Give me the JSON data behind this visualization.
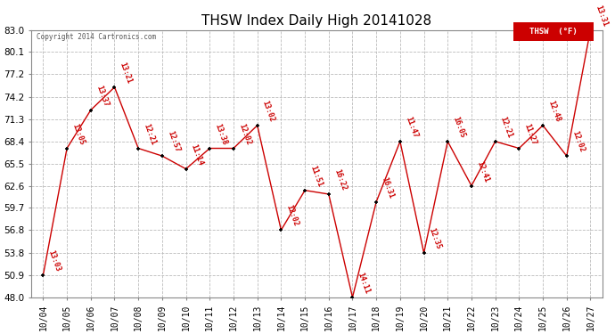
{
  "title": "THSW Index Daily High 20141028",
  "copyright": "Copyright 2014 Cartronics.com",
  "legend_label": "THSW  (°F)",
  "dates": [
    "10/04",
    "10/05",
    "10/06",
    "10/07",
    "10/08",
    "10/09",
    "10/10",
    "10/11",
    "10/12",
    "10/13",
    "10/14",
    "10/15",
    "10/16",
    "10/17",
    "10/18",
    "10/19",
    "10/20",
    "10/21",
    "10/22",
    "10/23",
    "10/24",
    "10/25",
    "10/26",
    "10/27"
  ],
  "values": [
    50.9,
    67.5,
    72.5,
    75.5,
    67.5,
    66.5,
    64.8,
    67.5,
    67.5,
    70.5,
    56.8,
    62.0,
    61.5,
    48.0,
    60.5,
    68.4,
    53.8,
    68.4,
    62.6,
    68.4,
    67.5,
    70.5,
    66.5,
    83.0
  ],
  "labels": [
    "13:03",
    "13:05",
    "13:37",
    "13:21",
    "12:21",
    "12:57",
    "11:14",
    "13:38",
    "12:02",
    "13:02",
    "12:02",
    "11:51",
    "16:22",
    "14:11",
    "16:31",
    "11:47",
    "12:35",
    "16:05",
    "12:41",
    "12:21",
    "11:27",
    "12:48",
    "12:02",
    "13:31"
  ],
  "ylim_min": 48.0,
  "ylim_max": 83.0,
  "yticks": [
    48.0,
    50.9,
    53.8,
    56.8,
    59.7,
    62.6,
    65.5,
    68.4,
    71.3,
    74.2,
    77.2,
    80.1,
    83.0
  ],
  "line_color": "#cc0000",
  "marker_color": "#000000",
  "bg_color": "#ffffff",
  "grid_color": "#bbbbbb",
  "title_fontsize": 11,
  "label_fontsize": 6,
  "tick_fontsize": 7.5,
  "legend_bg": "#cc0000",
  "legend_fg": "#ffffff"
}
